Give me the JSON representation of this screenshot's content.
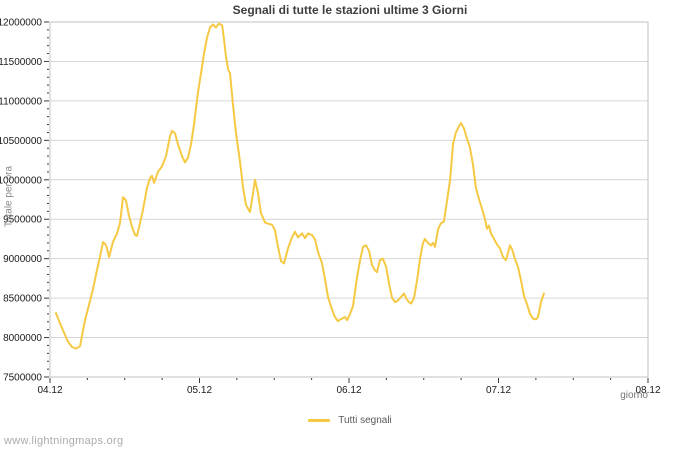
{
  "title": "Segnali di tutte le stazioni ultime 3 Giorni",
  "watermark": "www.lightningmaps.org",
  "legend": {
    "items": [
      {
        "label": "Tutti segnali",
        "color": "#f6c944"
      }
    ]
  },
  "chart_data": {
    "type": "line",
    "title": "Segnali di tutte le stazioni ultime 3 Giorni",
    "xlabel": "giorno",
    "ylabel": "Totale per ora",
    "xlim": [
      4,
      8
    ],
    "ylim": [
      7500000,
      12000000
    ],
    "grid": "horizontal",
    "legend_position": "bottom-center",
    "x_major_ticks": [
      {
        "value": 4,
        "label": "04.12"
      },
      {
        "value": 5,
        "label": "05.12"
      },
      {
        "value": 6,
        "label": "06.12"
      },
      {
        "value": 7,
        "label": "07.12"
      },
      {
        "value": 8,
        "label": "08.12"
      }
    ],
    "x_minor_step": 0.25,
    "y_major_step": 500000,
    "y_minor_step": 100000,
    "y_tick_labels": [
      "7500000",
      "8000000",
      "8500000",
      "9000000",
      "9500000",
      "10000000",
      "10500000",
      "11000000",
      "11500000",
      "12000000"
    ],
    "series": [
      {
        "name": "Tutti segnali",
        "color": "#f6c944",
        "x": [
          4.04,
          4.067,
          4.094,
          4.12,
          4.147,
          4.174,
          4.201,
          4.234,
          4.268,
          4.288,
          4.314,
          4.334,
          4.355,
          4.375,
          4.395,
          4.421,
          4.448,
          4.468,
          4.488,
          4.508,
          4.528,
          4.549,
          4.569,
          4.582,
          4.602,
          4.622,
          4.649,
          4.669,
          4.682,
          4.696,
          4.722,
          4.749,
          4.776,
          4.803,
          4.816,
          4.836,
          4.856,
          4.883,
          4.903,
          4.923,
          4.943,
          4.963,
          4.99,
          5.01,
          5.03,
          5.05,
          5.07,
          5.09,
          5.11,
          5.13,
          5.151,
          5.164,
          5.177,
          5.191,
          5.204,
          5.224,
          5.244,
          5.271,
          5.291,
          5.311,
          5.338,
          5.358,
          5.371,
          5.391,
          5.411,
          5.438,
          5.465,
          5.485,
          5.505,
          5.525,
          5.545,
          5.565,
          5.592,
          5.619,
          5.639,
          5.659,
          5.686,
          5.706,
          5.726,
          5.753,
          5.773,
          5.793,
          5.82,
          5.84,
          5.86,
          5.887,
          5.906,
          5.926,
          5.953,
          5.973,
          5.987,
          6.007,
          6.027,
          6.054,
          6.074,
          6.094,
          6.114,
          6.134,
          6.154,
          6.174,
          6.187,
          6.207,
          6.227,
          6.248,
          6.268,
          6.288,
          6.308,
          6.328,
          6.355,
          6.368,
          6.381,
          6.401,
          6.415,
          6.435,
          6.455,
          6.475,
          6.495,
          6.508,
          6.528,
          6.549,
          6.562,
          6.575,
          6.595,
          6.615,
          6.635,
          6.656,
          6.676,
          6.696,
          6.716,
          6.736,
          6.749,
          6.769,
          6.789,
          6.809,
          6.829,
          6.849,
          6.87,
          6.89,
          6.91,
          6.923,
          6.936,
          6.95,
          6.97,
          6.99,
          7.01,
          7.03,
          7.05,
          7.064,
          7.077,
          7.09,
          7.11,
          7.13,
          7.151,
          7.171,
          7.191,
          7.211,
          7.231,
          7.251,
          7.264,
          7.284,
          7.304
        ],
        "y": [
          8310000,
          8180000,
          8060000,
          7950000,
          7880000,
          7860000,
          7890000,
          8220000,
          8470000,
          8620000,
          8850000,
          9020000,
          9210000,
          9170000,
          9020000,
          9210000,
          9320000,
          9450000,
          9780000,
          9740000,
          9550000,
          9400000,
          9300000,
          9290000,
          9450000,
          9620000,
          9900000,
          10020000,
          10050000,
          9960000,
          10100000,
          10170000,
          10300000,
          10550000,
          10620000,
          10590000,
          10450000,
          10300000,
          10220000,
          10280000,
          10450000,
          10700000,
          11110000,
          11350000,
          11600000,
          11800000,
          11930000,
          11970000,
          11930000,
          11980000,
          11960000,
          11780000,
          11560000,
          11400000,
          11350000,
          10950000,
          10590000,
          10230000,
          9910000,
          9680000,
          9590000,
          9830000,
          10000000,
          9830000,
          9580000,
          9460000,
          9440000,
          9430000,
          9360000,
          9150000,
          8970000,
          8940000,
          9130000,
          9270000,
          9340000,
          9270000,
          9320000,
          9260000,
          9320000,
          9300000,
          9240000,
          9080000,
          8940000,
          8730000,
          8510000,
          8350000,
          8260000,
          8210000,
          8240000,
          8260000,
          8220000,
          8300000,
          8400000,
          8770000,
          8980000,
          9150000,
          9170000,
          9100000,
          8920000,
          8850000,
          8830000,
          8980000,
          9000000,
          8900000,
          8680000,
          8500000,
          8450000,
          8470000,
          8530000,
          8560000,
          8500000,
          8450000,
          8430000,
          8500000,
          8720000,
          9000000,
          9200000,
          9250000,
          9200000,
          9170000,
          9200000,
          9150000,
          9370000,
          9450000,
          9470000,
          9740000,
          10000000,
          10460000,
          10600000,
          10680000,
          10720000,
          10650000,
          10520000,
          10410000,
          10200000,
          9900000,
          9750000,
          9630000,
          9500000,
          9380000,
          9420000,
          9320000,
          9250000,
          9180000,
          9130000,
          9020000,
          8980000,
          9080000,
          9170000,
          9120000,
          9000000,
          8900000,
          8720000,
          8520000,
          8420000,
          8300000,
          8240000,
          8230000,
          8260000,
          8450000,
          8560000
        ]
      }
    ]
  }
}
